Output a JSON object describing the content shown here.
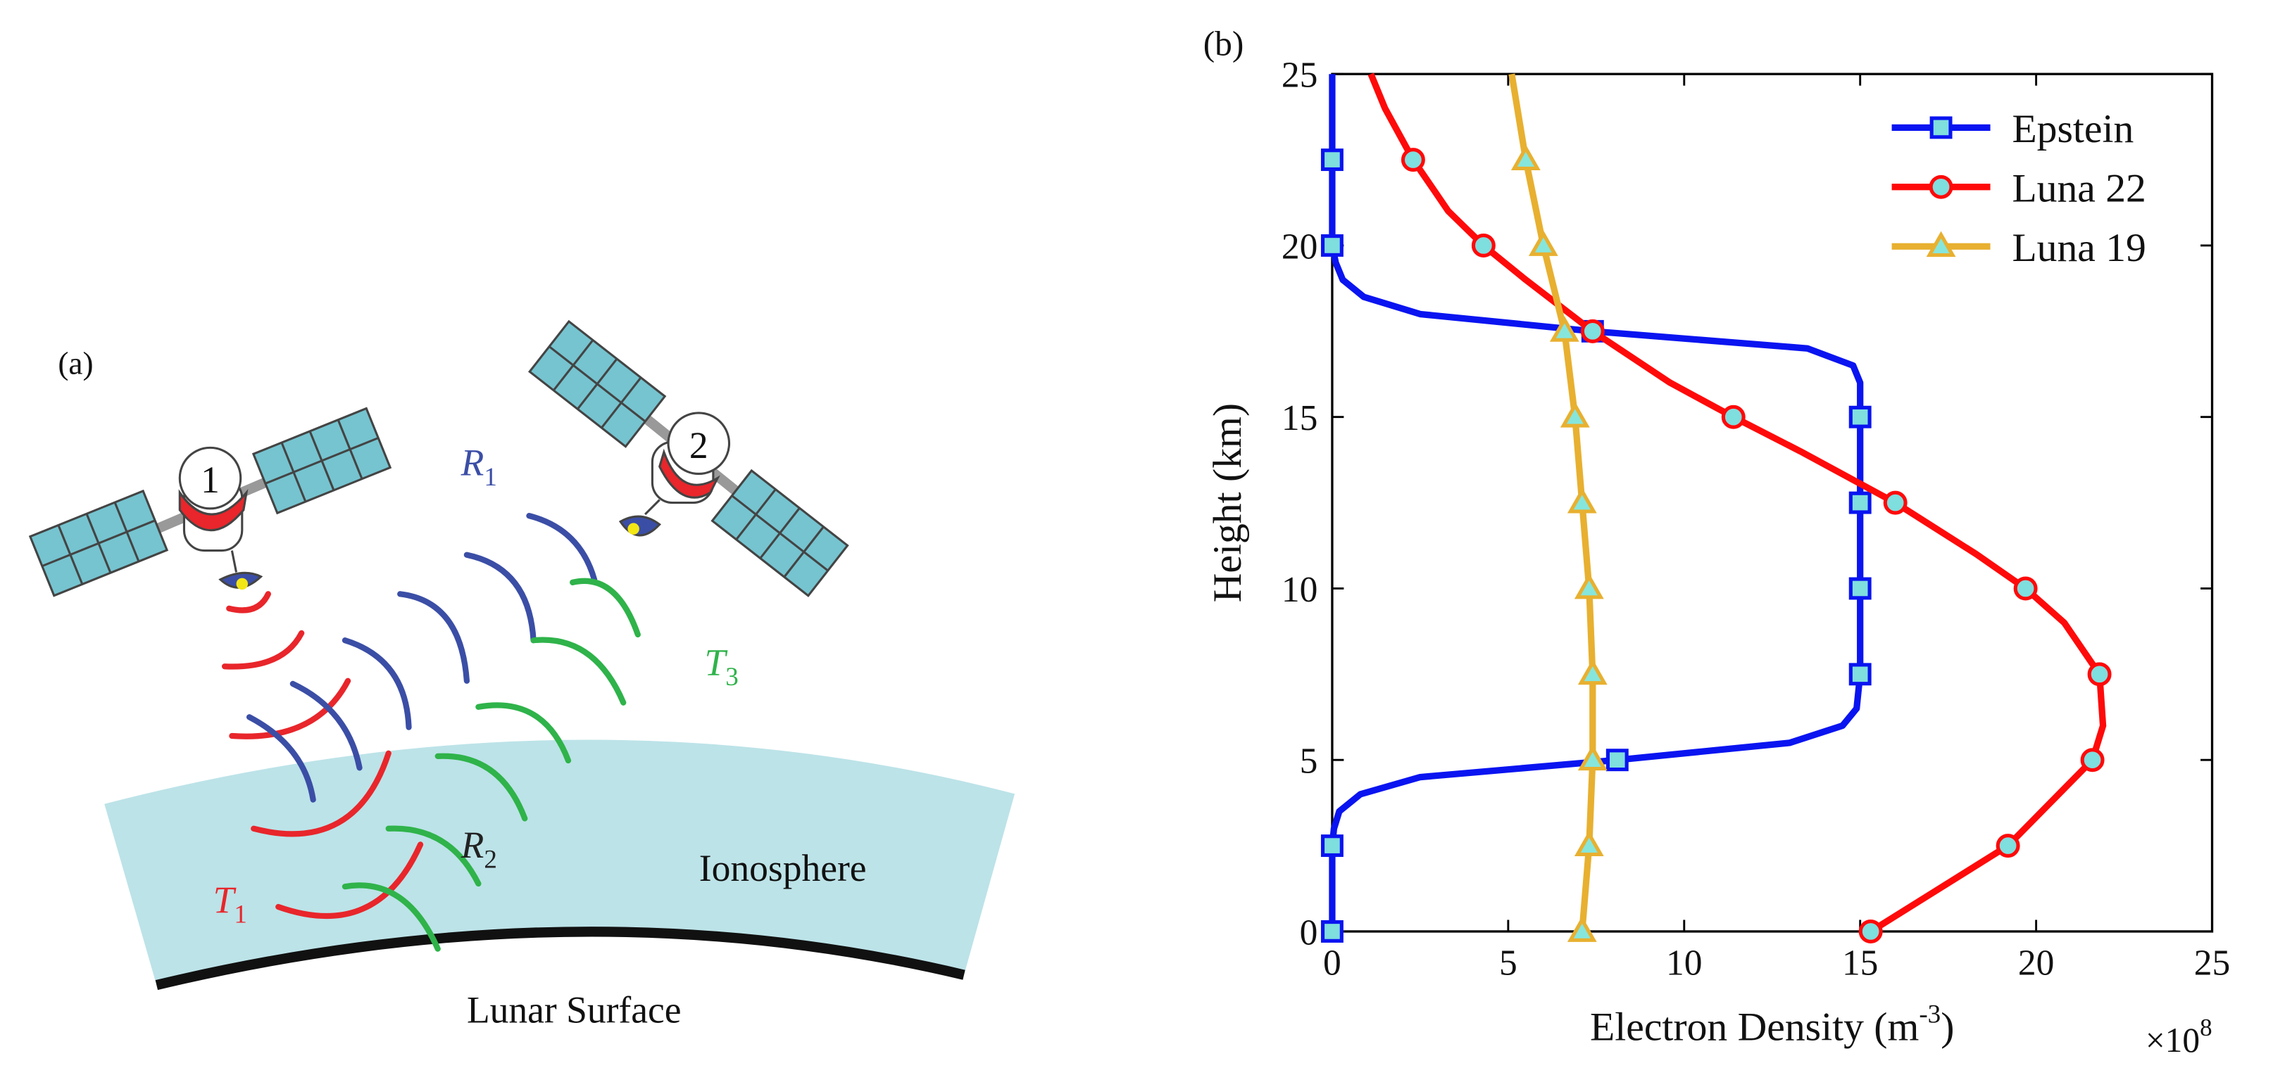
{
  "diagram": {
    "label": "(a)",
    "satellites": [
      "1",
      "2"
    ],
    "labels": [
      {
        "text": "R",
        "subscript": "1",
        "color": "#3b4ea6"
      },
      {
        "text": "R",
        "subscript": "2",
        "color": "#222222"
      },
      {
        "text": "T",
        "subscript": "1",
        "color": "#e8262b"
      },
      {
        "text": "T",
        "subscript": "3",
        "color": "#2fb34a"
      }
    ],
    "regions": [
      "Ionosphere",
      "Lunar Surface"
    ]
  },
  "chart_data": {
    "type": "line",
    "title": "(b)",
    "xlabel": {
      "text": "Electron Density (m",
      "superscript": "-3",
      "suffix": ")"
    },
    "x_multiplier": {
      "text": "×10",
      "superscript": "8"
    },
    "ylabel": "Height (km)",
    "xlim": [
      0,
      25
    ],
    "ylim": [
      0,
      25
    ],
    "xticks": [
      0,
      5,
      10,
      15,
      20,
      25
    ],
    "yticks": [
      0,
      5,
      10,
      15,
      20,
      25
    ],
    "legend": "upper right",
    "marker_heights": [
      0,
      2.5,
      5,
      7.5,
      10,
      12.5,
      15,
      17.5,
      20,
      22.5
    ],
    "series": [
      {
        "name": "Epstein",
        "color": "#0a14f0",
        "marker": "square",
        "marker_fill": "#7fdede",
        "y": [
          0,
          2.5,
          3,
          3.5,
          4,
          4.5,
          5,
          5.5,
          6,
          6.5,
          7.5,
          10,
          12.5,
          15,
          16,
          16.5,
          17,
          17.5,
          18,
          18.5,
          19,
          19.5,
          20,
          22.5,
          25
        ],
        "values": [
          0,
          0,
          0.05,
          0.2,
          0.8,
          2.5,
          8.1,
          13,
          14.5,
          14.9,
          15,
          15,
          15,
          15,
          15,
          14.8,
          13.5,
          7.4,
          2.5,
          0.9,
          0.3,
          0.1,
          0,
          0,
          0
        ]
      },
      {
        "name": "Luna 22",
        "color": "#ff0a0a",
        "marker": "circle",
        "marker_fill": "#7fdede",
        "y": [
          0,
          2.5,
          5,
          6,
          7.5,
          9,
          10,
          11,
          12.5,
          14,
          15,
          16,
          17.5,
          19,
          20,
          21,
          22.5,
          24,
          25
        ],
        "values": [
          15.3,
          19.2,
          21.6,
          21.9,
          21.8,
          20.8,
          19.7,
          18.3,
          16,
          13.3,
          11.4,
          9.6,
          7.4,
          5.5,
          4.3,
          3.3,
          2.3,
          1.5,
          1.1
        ]
      },
      {
        "name": "Luna 19",
        "color": "#e8b030",
        "marker": "triangle",
        "marker_fill": "#86e6dc",
        "y": [
          0,
          2.5,
          5,
          7.5,
          10,
          12.5,
          15,
          17.5,
          20,
          22.5,
          25
        ],
        "values": [
          7.1,
          7.3,
          7.4,
          7.4,
          7.3,
          7.1,
          6.9,
          6.6,
          6.0,
          5.5,
          5.1
        ]
      }
    ]
  }
}
